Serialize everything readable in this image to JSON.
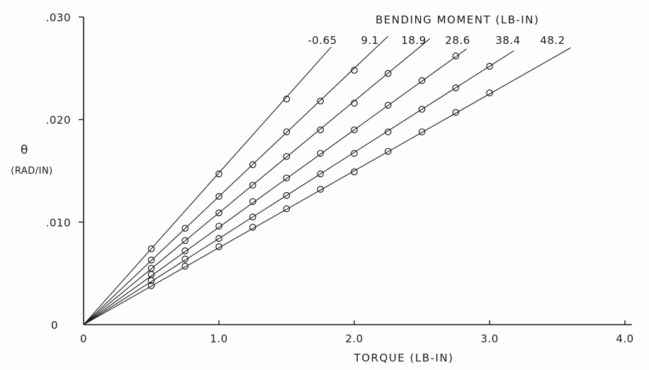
{
  "chart_data": {
    "type": "line",
    "title": "",
    "xlabel": "TORQUE (LB-IN)",
    "ylabel": "θ",
    "ylabel_unit": "(RAD/IN)",
    "xlim": [
      0,
      4.0
    ],
    "ylim": [
      0,
      0.03
    ],
    "x_ticks": [
      0,
      1.0,
      2.0,
      3.0,
      4.0
    ],
    "x_tick_labels": [
      "0",
      "1.0",
      "2.0",
      "3.0",
      "4.0"
    ],
    "y_ticks": [
      0,
      0.01,
      0.02,
      0.03
    ],
    "y_tick_labels": [
      "0",
      ".010",
      ".020",
      ".030"
    ],
    "grid": false,
    "legend_title": "BENDING MOMENT (LB-IN)",
    "legend_placement": "top-right",
    "series": [
      {
        "name": "-0.65",
        "slope": 0.0148,
        "line_end_x": 1.83,
        "points": [
          [
            0.5,
            0.0074
          ],
          [
            1.0,
            0.0147
          ],
          [
            1.5,
            0.022
          ]
        ]
      },
      {
        "name": "9.1",
        "slope": 0.0125,
        "line_end_x": 2.25,
        "points": [
          [
            0.5,
            0.0063
          ],
          [
            0.75,
            0.0094
          ],
          [
            1.0,
            0.0125
          ],
          [
            1.25,
            0.0156
          ],
          [
            1.5,
            0.0188
          ],
          [
            1.75,
            0.0218
          ],
          [
            2.0,
            0.0248
          ]
        ]
      },
      {
        "name": "18.9",
        "slope": 0.0109,
        "line_end_x": 2.56,
        "points": [
          [
            0.5,
            0.0055
          ],
          [
            0.75,
            0.0082
          ],
          [
            1.0,
            0.0109
          ],
          [
            1.25,
            0.0136
          ],
          [
            1.5,
            0.0164
          ],
          [
            1.75,
            0.019
          ],
          [
            2.0,
            0.0216
          ],
          [
            2.25,
            0.0245
          ]
        ]
      },
      {
        "name": "28.6",
        "slope": 0.0095,
        "line_end_x": 2.83,
        "points": [
          [
            0.5,
            0.0049
          ],
          [
            0.75,
            0.0072
          ],
          [
            1.0,
            0.0096
          ],
          [
            1.25,
            0.012
          ],
          [
            1.5,
            0.0143
          ],
          [
            1.75,
            0.0167
          ],
          [
            2.0,
            0.019
          ],
          [
            2.25,
            0.0214
          ],
          [
            2.5,
            0.0238
          ],
          [
            2.75,
            0.0262
          ]
        ]
      },
      {
        "name": "38.4",
        "slope": 0.0084,
        "line_end_x": 3.18,
        "points": [
          [
            0.5,
            0.0043
          ],
          [
            0.75,
            0.0064
          ],
          [
            1.0,
            0.0084
          ],
          [
            1.25,
            0.0105
          ],
          [
            1.5,
            0.0126
          ],
          [
            1.75,
            0.0147
          ],
          [
            2.0,
            0.0167
          ],
          [
            2.25,
            0.0188
          ],
          [
            2.5,
            0.021
          ],
          [
            2.75,
            0.0231
          ],
          [
            3.0,
            0.0252
          ]
        ]
      },
      {
        "name": "48.2",
        "slope": 0.0075,
        "line_end_x": 3.6,
        "points": [
          [
            0.5,
            0.0038
          ],
          [
            0.75,
            0.0057
          ],
          [
            1.0,
            0.0076
          ],
          [
            1.25,
            0.0095
          ],
          [
            1.5,
            0.0113
          ],
          [
            1.75,
            0.0132
          ],
          [
            2.0,
            0.0149
          ],
          [
            2.25,
            0.0169
          ],
          [
            2.5,
            0.0188
          ],
          [
            2.75,
            0.0207
          ],
          [
            3.0,
            0.0226
          ]
        ]
      }
    ]
  }
}
